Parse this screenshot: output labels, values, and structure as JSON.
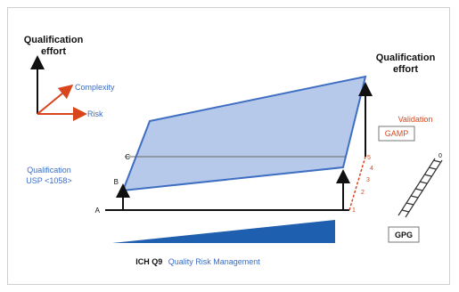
{
  "diagram": {
    "left_axis_title_line1": "Qualification",
    "left_axis_title_line2": "effort",
    "right_axis_title_line1": "Qualification",
    "right_axis_title_line2": "effort",
    "legend": {
      "complexity": "Complexity",
      "risk": "Risk"
    },
    "left_labels": {
      "qualification": "Qualification",
      "usp": "USP <1058>",
      "level_c": "C",
      "level_b": "B",
      "level_a": "A"
    },
    "right_labels": {
      "validation": "Validation",
      "gamp": "GAMP",
      "scale": [
        "5",
        "4",
        "3",
        "2",
        "1"
      ],
      "stair_top": "0",
      "gpg": "GPG"
    },
    "footer": {
      "prefix": "ICH Q9",
      "suffix": "Quality Risk Management"
    },
    "colors": {
      "plane_fill": "#a9c0e6",
      "plane_stroke": "#3f6fc2",
      "accent_red": "#d9461e",
      "accent_blue": "#3b6cc5",
      "wedge_fill": "#1f5fb0"
    }
  }
}
